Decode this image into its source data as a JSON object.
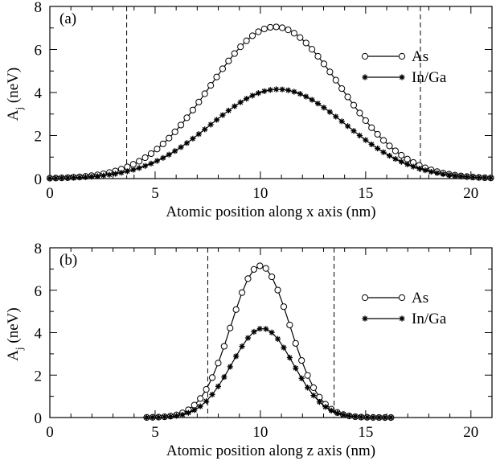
{
  "chart_data": [
    {
      "type": "line",
      "panel_label": "(a)",
      "xlabel": "Atomic position along x axis (nm)",
      "ylabel_main": "A",
      "ylabel_sub": "j",
      "ylabel_unit": "(neV)",
      "xlim": [
        0,
        21
      ],
      "ylim": [
        0,
        8
      ],
      "xticks": [
        0,
        5,
        10,
        15,
        20
      ],
      "yticks": [
        0,
        2,
        4,
        6,
        8
      ],
      "boundaries": [
        3.65,
        17.6
      ],
      "legend_position": "right",
      "series": [
        {
          "name": "As",
          "marker": "circle",
          "center": 10.7,
          "sigma": 3.1,
          "peak": 7.05,
          "x_start": 0.0,
          "x_end": 21.0,
          "x_step": 0.283
        },
        {
          "name": "In/Ga",
          "marker": "star",
          "center": 10.85,
          "sigma": 3.2,
          "peak": 4.15,
          "x_start": 0.0,
          "x_end": 21.0,
          "x_step": 0.283
        }
      ]
    },
    {
      "type": "line",
      "panel_label": "(b)",
      "xlabel": "Atomic position along z axis (nm)",
      "ylabel_main": "A",
      "ylabel_sub": "j",
      "ylabel_unit": "(neV)",
      "xlim": [
        0,
        21
      ],
      "ylim": [
        0,
        8
      ],
      "xticks": [
        0,
        5,
        10,
        15,
        20
      ],
      "yticks": [
        0,
        2,
        4,
        6,
        8
      ],
      "boundaries": [
        7.5,
        13.5
      ],
      "legend_position": "right",
      "series": [
        {
          "name": "As",
          "marker": "circle",
          "center": 10.0,
          "sigma": 1.4,
          "peak": 7.15,
          "x_start": 4.6,
          "x_end": 16.25,
          "x_step": 0.283
        },
        {
          "name": "In/Ga",
          "marker": "star",
          "center": 10.1,
          "sigma": 1.45,
          "peak": 4.2,
          "x_start": 4.6,
          "x_end": 16.25,
          "x_step": 0.283
        }
      ]
    }
  ]
}
